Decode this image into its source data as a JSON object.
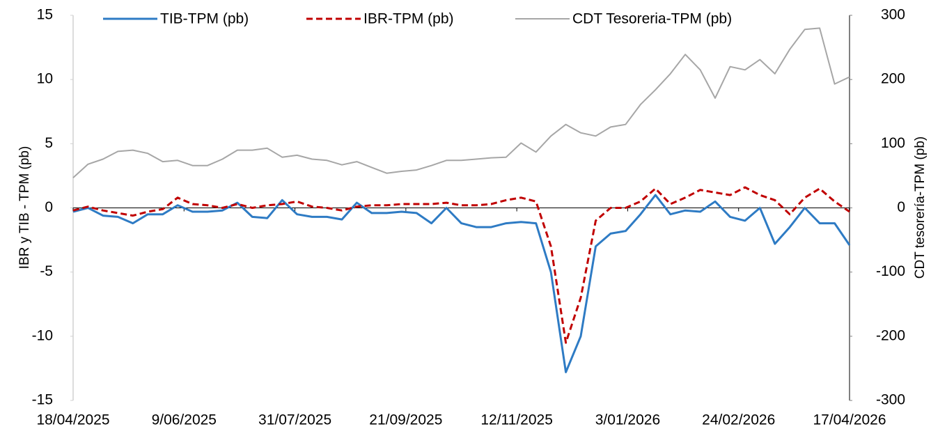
{
  "chart_data": {
    "type": "line",
    "x": [
      "18/04/2025",
      "25/04/2025",
      "2/05/2025",
      "9/05/2025",
      "16/05/2025",
      "23/05/2025",
      "30/05/2025",
      "6/06/2025",
      "13/06/2025",
      "20/06/2025",
      "27/06/2025",
      "4/07/2025",
      "11/07/2025",
      "18/07/2025",
      "25/07/2025",
      "1/08/2025",
      "8/08/2025",
      "15/08/2025",
      "22/08/2025",
      "29/08/2025",
      "5/09/2025",
      "12/09/2025",
      "19/09/2025",
      "26/09/2025",
      "3/10/2025",
      "10/10/2025",
      "17/10/2025",
      "24/10/2025",
      "31/10/2025",
      "7/11/2025",
      "14/11/2025",
      "21/11/2025",
      "28/11/2025",
      "5/12/2025",
      "12/12/2025",
      "19/12/2025",
      "26/12/2025",
      "2/01/2026",
      "9/01/2026",
      "16/01/2026",
      "23/01/2026",
      "30/01/2026",
      "6/02/2026",
      "13/02/2026",
      "20/02/2026",
      "27/02/2026",
      "6/03/2026",
      "13/03/2026",
      "20/03/2026",
      "27/03/2026",
      "3/04/2026",
      "10/04/2026",
      "17/04/2026"
    ],
    "series": [
      {
        "name": "TIB-TPM (pb)",
        "color": "#2e7bc4",
        "style": "solid",
        "values": [
          -0.3,
          0,
          -0.6,
          -0.7,
          -1.2,
          -0.5,
          -0.5,
          0.2,
          -0.3,
          -0.3,
          -0.2,
          0.4,
          -0.7,
          -0.8,
          0.6,
          -0.5,
          -0.7,
          -0.7,
          -0.9,
          0.4,
          -0.4,
          -0.4,
          -0.3,
          -0.4,
          -1.2,
          0,
          -1.2,
          -1.5,
          -1.5,
          -1.2,
          -1.1,
          -1.2,
          -5,
          -12.8,
          -10,
          -3,
          -2,
          -1.8,
          -0.5,
          1,
          -0.5,
          -0.2,
          -0.3,
          0.5,
          -0.7,
          -1.0,
          0,
          -2.8,
          -1.5,
          0,
          -1.2,
          -1.2,
          -2.9
        ]
      },
      {
        "name": "IBR-TPM (pb)",
        "color": "#c00000",
        "style": "dashed",
        "values": [
          -0.2,
          0.1,
          -0.2,
          -0.4,
          -0.6,
          -0.3,
          -0.1,
          0.8,
          0.3,
          0.2,
          0,
          0.3,
          0,
          0.2,
          0.3,
          0.5,
          0.1,
          0,
          -0.2,
          0.1,
          0.2,
          0.2,
          0.3,
          0.3,
          0.3,
          0.4,
          0.2,
          0.2,
          0.3,
          0.6,
          0.8,
          0.5,
          -3,
          -10.5,
          -7,
          -1,
          0,
          0,
          0.5,
          1.5,
          0.3,
          0.8,
          1.4,
          1.2,
          1,
          1.6,
          1,
          0.6,
          -0.5,
          0.8,
          1.5,
          0.5,
          -0.3
        ]
      },
      {
        "name": "CDT Tesoreria-TPM (pb)",
        "color": "#a6a6a6",
        "style": "solid",
        "axis": "y2",
        "values": [
          47,
          68,
          76,
          88,
          90,
          85,
          72,
          74,
          66,
          66,
          76,
          90,
          90,
          93,
          79,
          82,
          76,
          74,
          67,
          72,
          63,
          54,
          57,
          59,
          66,
          74,
          74,
          76,
          78,
          79,
          101,
          87,
          112,
          130,
          117,
          112,
          126,
          130,
          161,
          184,
          209,
          239,
          215,
          171,
          220,
          215,
          231,
          209,
          247,
          278,
          280,
          193,
          204
        ]
      }
    ],
    "xlim": [
      "18/04/2025",
      "17/04/2026"
    ],
    "xticks": [
      "18/04/2025",
      "9/06/2025",
      "31/07/2025",
      "21/09/2025",
      "12/11/2025",
      "3/01/2026",
      "24/02/2026",
      "17/04/2026"
    ],
    "ylim": [
      -15,
      15
    ],
    "yticks": [
      -15,
      -10,
      -5,
      0,
      5,
      10,
      15
    ],
    "y2lim": [
      -300,
      300
    ],
    "y2ticks": [
      -300,
      -200,
      -100,
      0,
      100,
      200,
      300
    ],
    "ylabel": "IBR y TIB - TPM (pb)",
    "y2label": "CDT tesorería-TPM (pb)",
    "legend": "top"
  }
}
